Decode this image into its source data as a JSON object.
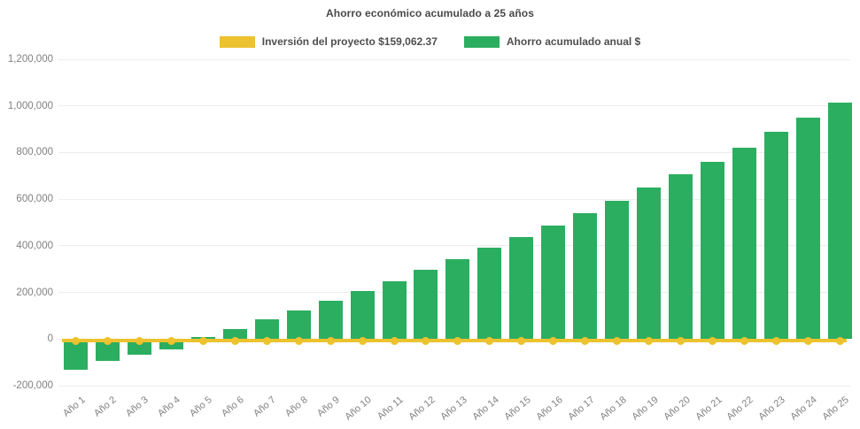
{
  "title": "Ahorro económico acumulado a 25 años",
  "legend": {
    "items": [
      {
        "label": "Inversión del proyecto $159,062.37",
        "color": "#ecc22e",
        "series_type": "line"
      },
      {
        "label": "Ahorro acumulado anual $",
        "color": "#2bae60",
        "series_type": "bar"
      }
    ]
  },
  "colors": {
    "bar_green": "#2bae60",
    "line_yellow": "#ecc22e",
    "axis_text": "#808080",
    "title_text": "#494949",
    "legend_text": "#4f4f4f",
    "gridline": "#ededed",
    "background": "#ffffff"
  },
  "chart_data": {
    "type": "bar",
    "title": "Ahorro económico acumulado a 25 años",
    "categories": [
      "Año 1",
      "Año 2",
      "Año 3",
      "Año 4",
      "Año 5",
      "Año 6",
      "Año 7",
      "Año 8",
      "Año 9",
      "Año 10",
      "Año 11",
      "Año 12",
      "Año 13",
      "Año 14",
      "Año 15",
      "Año 16",
      "Año 17",
      "Año 18",
      "Año 19",
      "Año 20",
      "Año 21",
      "Año 22",
      "Año 23",
      "Año 24",
      "Año 25"
    ],
    "series": [
      {
        "name": "Ahorro acumulado anual $",
        "type": "bar",
        "color": "#2bae60",
        "values": [
          -132000,
          -95000,
          -66000,
          -43000,
          10000,
          44000,
          84000,
          121000,
          165000,
          205000,
          249000,
          297000,
          341000,
          390000,
          436000,
          488000,
          541000,
          593000,
          649000,
          706000,
          759000,
          821000,
          887000,
          949000,
          1015000
        ]
      },
      {
        "name": "Inversión del proyecto $159,062.37",
        "type": "line",
        "color": "#ecc22e",
        "values": [
          0,
          0,
          0,
          0,
          0,
          0,
          0,
          0,
          0,
          0,
          0,
          0,
          0,
          0,
          0,
          0,
          0,
          0,
          0,
          0,
          0,
          0,
          0,
          0,
          0
        ]
      }
    ],
    "ylim": [
      -200000,
      1200000
    ],
    "yticks": [
      {
        "value": 1200000,
        "label": "1,200,000"
      },
      {
        "value": 1000000,
        "label": "1,000,000"
      },
      {
        "value": 800000,
        "label": "800,000"
      },
      {
        "value": 600000,
        "label": "600,000"
      },
      {
        "value": 400000,
        "label": "400,000"
      },
      {
        "value": 200000,
        "label": "200,000"
      },
      {
        "value": 0,
        "label": "0"
      },
      {
        "value": -200000,
        "label": "-200,000"
      }
    ],
    "xlabel": "",
    "ylabel": "",
    "xtick_rotation_deg": 40,
    "legend_position": "top",
    "grid": "faint horizontal gridlines"
  }
}
